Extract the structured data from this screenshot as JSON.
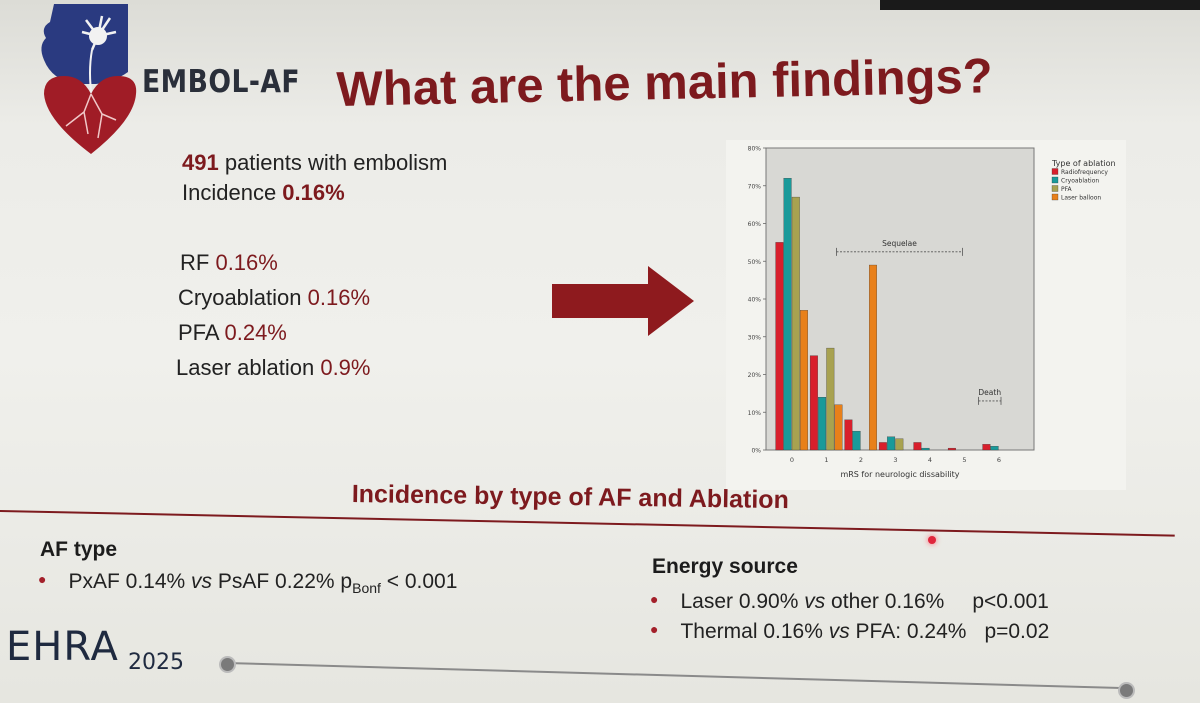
{
  "brand": "EMBOL-AF",
  "title": "What are the main findings?",
  "summary": {
    "patients_value": "491",
    "patients_text": " patients with embolism",
    "incidence_label": "Incidence ",
    "incidence_value": "0.16%"
  },
  "rates": [
    {
      "label": "RF ",
      "value": "0.16%"
    },
    {
      "label": "Cryoablation ",
      "value": "0.16%"
    },
    {
      "label": "PFA ",
      "value": "0.24%"
    },
    {
      "label": "Laser ablation ",
      "value": "0.9%"
    }
  ],
  "subtitle": "Incidence by type of AF and Ablation",
  "af_type": {
    "title": "AF type",
    "line": {
      "a": "PxAF 0.14% ",
      "vs": "vs",
      "b": " PsAF 0.22%  ",
      "p": "p",
      "sub": "Bonf",
      "c": " < 0.001"
    }
  },
  "energy": {
    "title": "Energy source",
    "lines": [
      {
        "a": "Laser  0.90% ",
        "vs": "vs",
        "b": " other 0.16%",
        "p": "p<0.001"
      },
      {
        "a": "Thermal 0.16% ",
        "vs": "vs",
        "b": " PFA: 0.24%",
        "p": "p=0.02"
      }
    ]
  },
  "footer": {
    "ehra": "EHRA",
    "year": "2025"
  },
  "colors": {
    "accent": "#7d1a1e",
    "rf": "#d81f2c",
    "cryo": "#1a9a9a",
    "pfa": "#a8a250",
    "laser": "#e8801a"
  },
  "chart_data": {
    "type": "bar",
    "xlabel": "mRS for neurologic dissability",
    "ylabel": "",
    "categories": [
      "0",
      "1",
      "2",
      "3",
      "4",
      "5",
      "6"
    ],
    "ylim": [
      0,
      80
    ],
    "yticks": [
      "0%",
      "10%",
      "20%",
      "30%",
      "40%",
      "50%",
      "60%",
      "70%",
      "80%"
    ],
    "legend_title": "Type of ablation",
    "legend_position": "top-right",
    "series": [
      {
        "name": "Radiofrequency",
        "color": "#d81f2c",
        "values": [
          55,
          25,
          8,
          2,
          2,
          0.5,
          1.5
        ]
      },
      {
        "name": "Cryoablation",
        "color": "#1a9a9a",
        "values": [
          72,
          14,
          5,
          3.5,
          0.5,
          0,
          1
        ]
      },
      {
        "name": "PFA",
        "color": "#a8a250",
        "values": [
          67,
          27,
          0,
          3,
          0,
          0,
          0
        ]
      },
      {
        "name": "Laser balloon",
        "color": "#e8801a",
        "values": [
          37,
          12,
          49,
          0,
          0,
          0,
          0
        ]
      }
    ],
    "annotations": [
      {
        "text": "Sequelae",
        "from": "1",
        "to": "5"
      },
      {
        "text": "Death",
        "from": "5",
        "to": "6"
      }
    ]
  }
}
